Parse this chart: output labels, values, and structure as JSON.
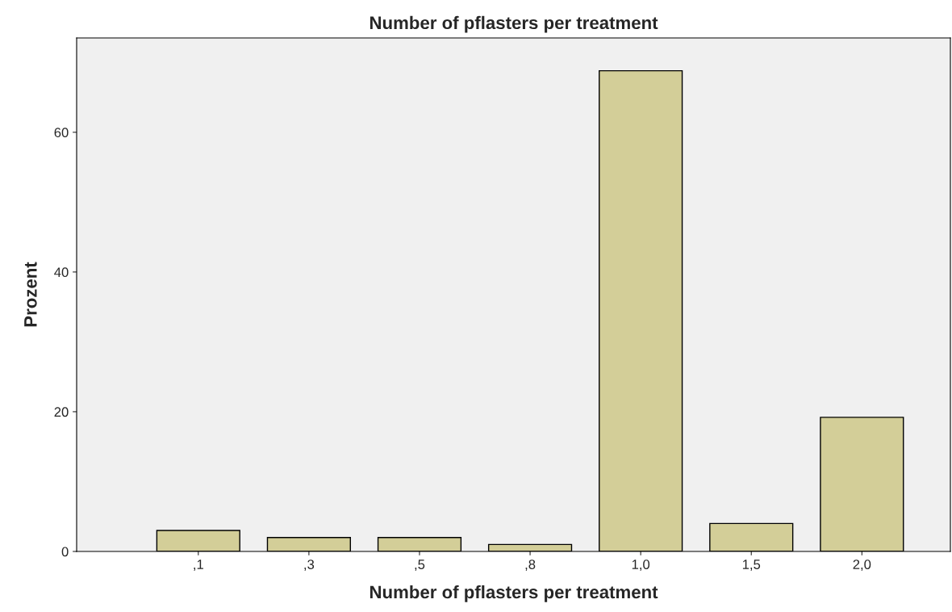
{
  "chart_data": {
    "type": "bar",
    "title": "Number of pflasters per treatment",
    "xlabel": "Number of pflasters per treatment",
    "ylabel": "Prozent",
    "categories": [
      ",1",
      ",3",
      ",5",
      ",8",
      "1,0",
      "1,5",
      "2,0"
    ],
    "values": [
      3.0,
      2.0,
      2.0,
      1.0,
      68.8,
      4.0,
      19.2
    ],
    "color": "#d3ce98",
    "ylim": [
      0,
      73.5
    ],
    "yticks": [
      0,
      20,
      40,
      60
    ],
    "grid": false
  }
}
